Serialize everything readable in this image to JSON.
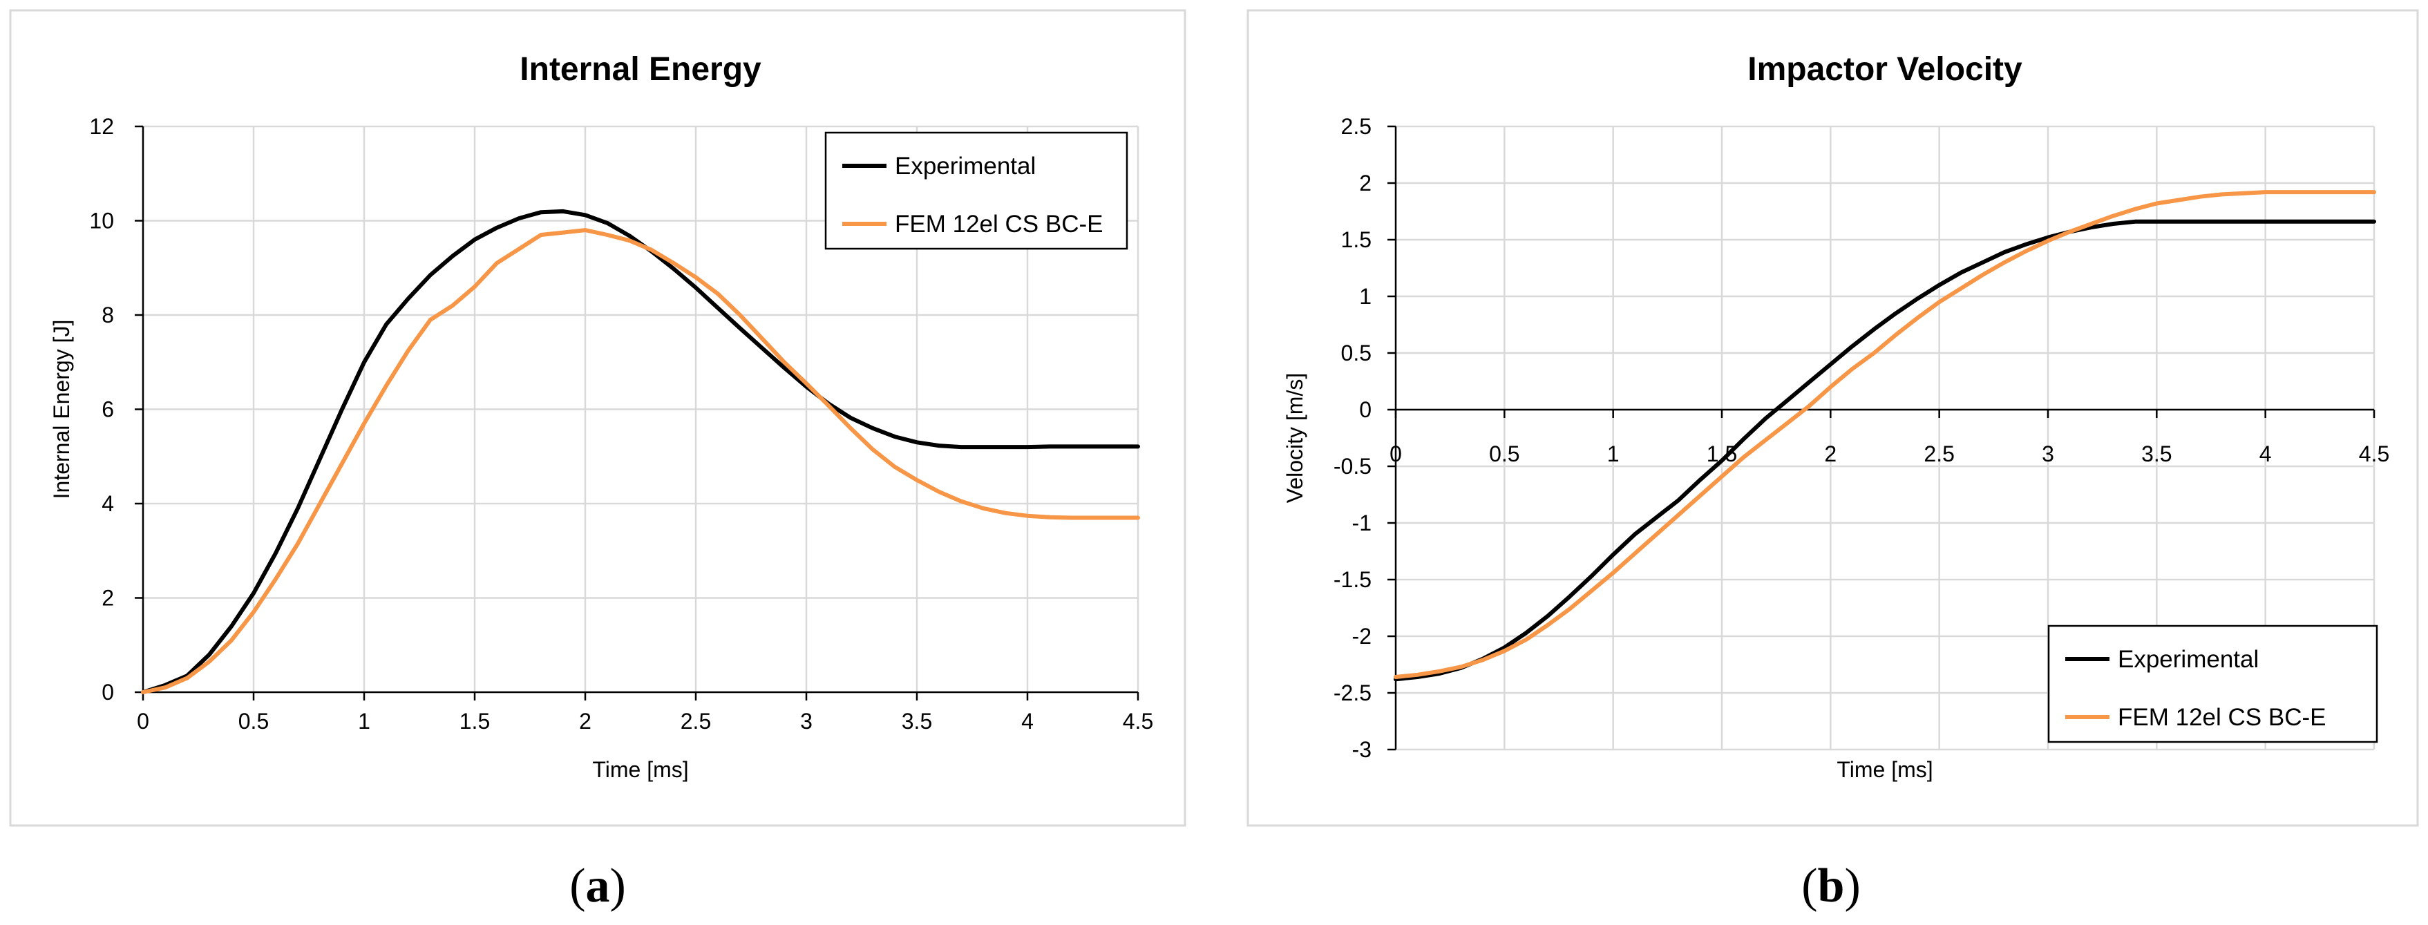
{
  "chart_data": [
    {
      "type": "line",
      "title": "Internal Energy",
      "xlabel": "Time [ms]",
      "ylabel": "Internal Energy [J]",
      "xlim": [
        0,
        4.5
      ],
      "ylim": [
        0,
        12
      ],
      "x_ticks": [
        "0",
        "0.5",
        "1",
        "1.5",
        "2",
        "2.5",
        "3",
        "3.5",
        "4",
        "4.5"
      ],
      "y_ticks": [
        "0",
        "2",
        "4",
        "6",
        "8",
        "10",
        "12"
      ],
      "grid": true,
      "legend_position": "top-right",
      "caption": {
        "open": "(",
        "letter": "a",
        "close": ")"
      },
      "series": [
        {
          "name": "Experimental",
          "color": "#000000",
          "points": [
            [
              0,
              0
            ],
            [
              0.1,
              0.15
            ],
            [
              0.2,
              0.35
            ],
            [
              0.3,
              0.8
            ],
            [
              0.4,
              1.4
            ],
            [
              0.5,
              2.1
            ],
            [
              0.6,
              2.95
            ],
            [
              0.7,
              3.9
            ],
            [
              0.8,
              4.95
            ],
            [
              0.9,
              6.0
            ],
            [
              1.0,
              7.0
            ],
            [
              1.1,
              7.8
            ],
            [
              1.2,
              8.35
            ],
            [
              1.3,
              8.85
            ],
            [
              1.4,
              9.25
            ],
            [
              1.5,
              9.6
            ],
            [
              1.6,
              9.85
            ],
            [
              1.7,
              10.05
            ],
            [
              1.8,
              10.18
            ],
            [
              1.9,
              10.2
            ],
            [
              2.0,
              10.12
            ],
            [
              2.1,
              9.95
            ],
            [
              2.2,
              9.68
            ],
            [
              2.3,
              9.35
            ],
            [
              2.4,
              8.98
            ],
            [
              2.5,
              8.58
            ],
            [
              2.6,
              8.15
            ],
            [
              2.7,
              7.72
            ],
            [
              2.8,
              7.3
            ],
            [
              2.9,
              6.88
            ],
            [
              3.0,
              6.48
            ],
            [
              3.1,
              6.12
            ],
            [
              3.2,
              5.82
            ],
            [
              3.3,
              5.6
            ],
            [
              3.4,
              5.42
            ],
            [
              3.5,
              5.3
            ],
            [
              3.6,
              5.23
            ],
            [
              3.7,
              5.2
            ],
            [
              3.8,
              5.2
            ],
            [
              3.9,
              5.2
            ],
            [
              4.0,
              5.2
            ],
            [
              4.1,
              5.21
            ],
            [
              4.2,
              5.21
            ],
            [
              4.3,
              5.21
            ],
            [
              4.4,
              5.21
            ],
            [
              4.5,
              5.21
            ]
          ]
        },
        {
          "name": "FEM 12el CS BC-E",
          "color": "#F79646",
          "points": [
            [
              0,
              0
            ],
            [
              0.1,
              0.1
            ],
            [
              0.2,
              0.3
            ],
            [
              0.3,
              0.65
            ],
            [
              0.4,
              1.1
            ],
            [
              0.5,
              1.7
            ],
            [
              0.6,
              2.4
            ],
            [
              0.7,
              3.15
            ],
            [
              0.8,
              4.0
            ],
            [
              0.9,
              4.85
            ],
            [
              1.0,
              5.7
            ],
            [
              1.1,
              6.5
            ],
            [
              1.2,
              7.25
            ],
            [
              1.3,
              7.9
            ],
            [
              1.4,
              8.2
            ],
            [
              1.5,
              8.6
            ],
            [
              1.6,
              9.1
            ],
            [
              1.7,
              9.4
            ],
            [
              1.8,
              9.7
            ],
            [
              1.9,
              9.75
            ],
            [
              2.0,
              9.8
            ],
            [
              2.1,
              9.7
            ],
            [
              2.2,
              9.58
            ],
            [
              2.3,
              9.38
            ],
            [
              2.4,
              9.1
            ],
            [
              2.5,
              8.8
            ],
            [
              2.6,
              8.45
            ],
            [
              2.7,
              8.0
            ],
            [
              2.8,
              7.5
            ],
            [
              2.9,
              7.0
            ],
            [
              3.0,
              6.55
            ],
            [
              3.1,
              6.08
            ],
            [
              3.2,
              5.6
            ],
            [
              3.3,
              5.15
            ],
            [
              3.4,
              4.78
            ],
            [
              3.5,
              4.5
            ],
            [
              3.6,
              4.25
            ],
            [
              3.7,
              4.05
            ],
            [
              3.8,
              3.9
            ],
            [
              3.9,
              3.8
            ],
            [
              4.0,
              3.74
            ],
            [
              4.1,
              3.71
            ],
            [
              4.2,
              3.7
            ],
            [
              4.3,
              3.7
            ],
            [
              4.4,
              3.7
            ],
            [
              4.5,
              3.7
            ]
          ]
        }
      ]
    },
    {
      "type": "line",
      "title": "Impactor Velocity",
      "xlabel": "Time [ms]",
      "ylabel": "Velocity [m/s]",
      "xlim": [
        0,
        4.5
      ],
      "ylim": [
        -3,
        2.5
      ],
      "x_ticks": [
        "0",
        "0.5",
        "1",
        "1.5",
        "2",
        "2.5",
        "3",
        "3.5",
        "4",
        "4.5"
      ],
      "y_ticks": [
        "-3",
        "-2.5",
        "-2",
        "-1.5",
        "-1",
        "-0.5",
        "0",
        "0.5",
        "1",
        "1.5",
        "2",
        "2.5"
      ],
      "grid": true,
      "legend_position": "bottom-right",
      "caption": {
        "open": "(",
        "letter": "b",
        "close": ")"
      },
      "series": [
        {
          "name": "Experimental",
          "color": "#000000",
          "points": [
            [
              0,
              -2.38
            ],
            [
              0.1,
              -2.36
            ],
            [
              0.2,
              -2.33
            ],
            [
              0.3,
              -2.28
            ],
            [
              0.4,
              -2.2
            ],
            [
              0.5,
              -2.1
            ],
            [
              0.6,
              -1.97
            ],
            [
              0.7,
              -1.82
            ],
            [
              0.8,
              -1.65
            ],
            [
              0.9,
              -1.47
            ],
            [
              1.0,
              -1.28
            ],
            [
              1.1,
              -1.1
            ],
            [
              1.2,
              -0.95
            ],
            [
              1.3,
              -0.8
            ],
            [
              1.4,
              -0.62
            ],
            [
              1.5,
              -0.45
            ],
            [
              1.6,
              -0.26
            ],
            [
              1.7,
              -0.08
            ],
            [
              1.8,
              0.08
            ],
            [
              1.9,
              0.24
            ],
            [
              2.0,
              0.4
            ],
            [
              2.1,
              0.56
            ],
            [
              2.2,
              0.71
            ],
            [
              2.3,
              0.85
            ],
            [
              2.4,
              0.98
            ],
            [
              2.5,
              1.1
            ],
            [
              2.6,
              1.21
            ],
            [
              2.7,
              1.3
            ],
            [
              2.8,
              1.39
            ],
            [
              2.9,
              1.46
            ],
            [
              3.0,
              1.52
            ],
            [
              3.1,
              1.57
            ],
            [
              3.2,
              1.61
            ],
            [
              3.3,
              1.64
            ],
            [
              3.4,
              1.66
            ],
            [
              3.5,
              1.66
            ],
            [
              3.6,
              1.66
            ],
            [
              3.7,
              1.66
            ],
            [
              3.8,
              1.66
            ],
            [
              3.9,
              1.66
            ],
            [
              4.0,
              1.66
            ],
            [
              4.1,
              1.66
            ],
            [
              4.2,
              1.66
            ],
            [
              4.3,
              1.66
            ],
            [
              4.4,
              1.66
            ],
            [
              4.5,
              1.66
            ]
          ]
        },
        {
          "name": "FEM 12el CS BC-E",
          "color": "#F79646",
          "points": [
            [
              0,
              -2.36
            ],
            [
              0.1,
              -2.34
            ],
            [
              0.2,
              -2.31
            ],
            [
              0.3,
              -2.27
            ],
            [
              0.4,
              -2.21
            ],
            [
              0.5,
              -2.13
            ],
            [
              0.6,
              -2.03
            ],
            [
              0.7,
              -1.9
            ],
            [
              0.8,
              -1.76
            ],
            [
              0.9,
              -1.6
            ],
            [
              1.0,
              -1.44
            ],
            [
              1.1,
              -1.27
            ],
            [
              1.2,
              -1.1
            ],
            [
              1.3,
              -0.93
            ],
            [
              1.4,
              -0.76
            ],
            [
              1.5,
              -0.59
            ],
            [
              1.6,
              -0.42
            ],
            [
              1.7,
              -0.27
            ],
            [
              1.8,
              -0.12
            ],
            [
              1.9,
              0.03
            ],
            [
              2.0,
              0.2
            ],
            [
              2.1,
              0.36
            ],
            [
              2.2,
              0.5
            ],
            [
              2.3,
              0.66
            ],
            [
              2.4,
              0.81
            ],
            [
              2.5,
              0.95
            ],
            [
              2.6,
              1.07
            ],
            [
              2.7,
              1.19
            ],
            [
              2.8,
              1.3
            ],
            [
              2.9,
              1.4
            ],
            [
              3.0,
              1.49
            ],
            [
              3.1,
              1.57
            ],
            [
              3.2,
              1.64
            ],
            [
              3.3,
              1.71
            ],
            [
              3.4,
              1.77
            ],
            [
              3.5,
              1.82
            ],
            [
              3.6,
              1.85
            ],
            [
              3.7,
              1.88
            ],
            [
              3.8,
              1.9
            ],
            [
              3.9,
              1.91
            ],
            [
              4.0,
              1.92
            ],
            [
              4.1,
              1.92
            ],
            [
              4.2,
              1.92
            ],
            [
              4.3,
              1.92
            ],
            [
              4.4,
              1.92
            ],
            [
              4.5,
              1.92
            ]
          ]
        }
      ]
    }
  ]
}
